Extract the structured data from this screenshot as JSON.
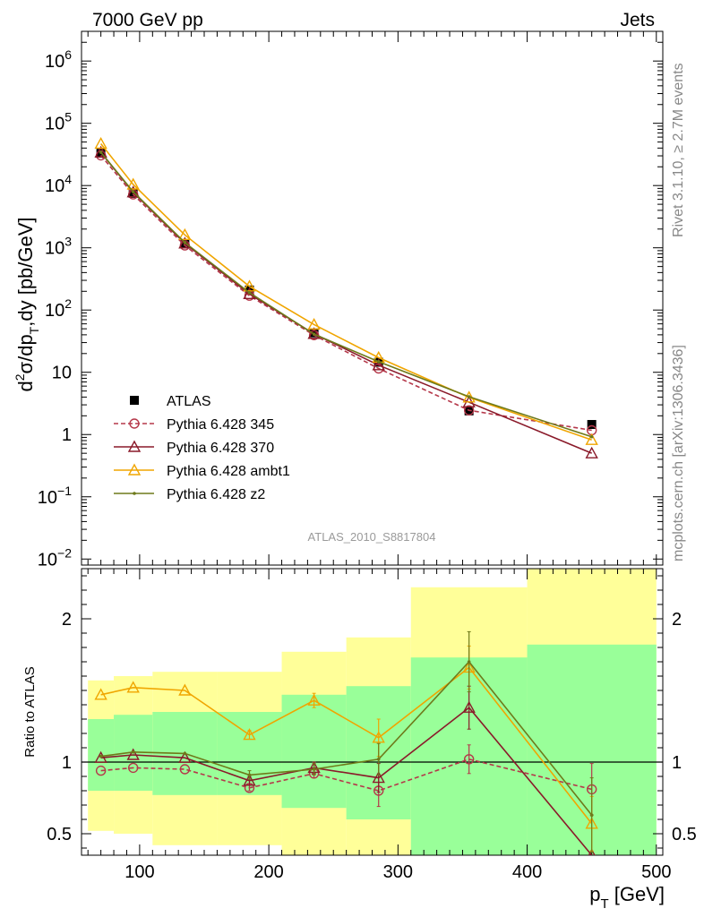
{
  "header": {
    "left": "7000 GeV pp",
    "right": "Jets"
  },
  "side_labels": {
    "rivet": "Rivet 3.1.10, ≥ 2.7M events",
    "mcplots": "mcplots.cern.ch [arXiv:1306.3436]"
  },
  "watermark": "ATLAS_2010_S8817804",
  "chart_data": [
    {
      "type": "line",
      "panel": "main",
      "ylabel_parts": {
        "d": "d",
        "sup2": "2",
        "mid1": "σ/dp",
        "subT": "T",
        "mid2": ",dy [pb/GeV]"
      },
      "yscale": "log",
      "xlim": [
        55,
        505
      ],
      "ylim": [
        0.008,
        3000000
      ],
      "ytick_labels": [
        {
          "base": "10",
          "exp": "6",
          "v": 1000000
        },
        {
          "base": "10",
          "exp": "5",
          "v": 100000
        },
        {
          "base": "10",
          "exp": "4",
          "v": 10000
        },
        {
          "base": "10",
          "exp": "3",
          "v": 1000
        },
        {
          "base": "10",
          "exp": "2",
          "v": 100
        },
        {
          "base": "10",
          "exp": "",
          "v": 10
        },
        {
          "base": "1",
          "exp": "",
          "v": 1
        },
        {
          "base": "10",
          "exp": "−1",
          "v": 0.1
        },
        {
          "base": "10",
          "exp": "−2",
          "v": 0.01
        }
      ],
      "x": [
        70,
        95,
        135,
        185,
        235,
        285,
        355,
        450
      ],
      "series": [
        {
          "name": "ATLAS",
          "color": "#000000",
          "marker": "square",
          "values": [
            33000,
            7500,
            1150,
            210,
            43,
            14.5,
            2.4,
            1.45
          ]
        },
        {
          "name": "Pythia 6.428 345",
          "color": "#b5384a",
          "marker": "circle",
          "dashed": true,
          "values": [
            30500,
            7200,
            1090,
            170,
            39.5,
            11.5,
            2.45,
            1.17
          ]
        },
        {
          "name": "Pythia 6.428 370",
          "color": "#8a1a2a",
          "marker": "triangle",
          "values": [
            34000,
            7800,
            1175,
            181,
            41.5,
            13,
            3.3,
            0.5
          ]
        },
        {
          "name": "Pythia 6.428 ambt1",
          "color": "#f0a500",
          "marker": "triangle",
          "values": [
            47000,
            10400,
            1610,
            240,
            58.5,
            17.2,
            3.95,
            0.82
          ]
        },
        {
          "name": "Pythia 6.428 z2",
          "color": "#6e7a1a",
          "marker": "dot",
          "values": [
            34200,
            7950,
            1215,
            190,
            41,
            14.8,
            4.05,
            0.92
          ]
        }
      ]
    },
    {
      "type": "line",
      "panel": "ratio",
      "ylabel": "Ratio to ATLAS",
      "xlabel_main": "p",
      "xlabel_sub": "T",
      "xlabel_unit": " [GeV]",
      "ylim": [
        0.35,
        2.35
      ],
      "ytick_labels": [
        "2",
        "1",
        "0.5"
      ],
      "ytick_values": [
        2,
        1,
        0.5
      ],
      "xtick_labels": [
        "100",
        "200",
        "300",
        "400",
        "500"
      ],
      "xtick_values": [
        100,
        200,
        300,
        400,
        500
      ],
      "reference_line": 1,
      "band_bins": [
        {
          "x0": 60,
          "x1": 80,
          "green": [
            0.8,
            1.3
          ],
          "yellow": [
            0.52,
            1.57
          ]
        },
        {
          "x0": 80,
          "x1": 110,
          "green": [
            0.8,
            1.33
          ],
          "yellow": [
            0.5,
            1.6
          ]
        },
        {
          "x0": 110,
          "x1": 160,
          "green": [
            0.77,
            1.35
          ],
          "yellow": [
            0.42,
            1.63
          ]
        },
        {
          "x0": 160,
          "x1": 210,
          "green": [
            0.77,
            1.35
          ],
          "yellow": [
            0.42,
            1.63
          ]
        },
        {
          "x0": 210,
          "x1": 260,
          "green": [
            0.68,
            1.47
          ],
          "yellow": [
            0.35,
            1.77
          ]
        },
        {
          "x0": 260,
          "x1": 310,
          "green": [
            0.6,
            1.53
          ],
          "yellow": [
            0.35,
            1.87
          ]
        },
        {
          "x0": 310,
          "x1": 400,
          "green": [
            0.35,
            1.73
          ],
          "yellow": [
            0.35,
            2.22
          ]
        },
        {
          "x0": 400,
          "x1": 500,
          "green": [
            0.35,
            1.82
          ],
          "yellow": [
            0.35,
            2.35
          ]
        }
      ],
      "x": [
        70,
        95,
        135,
        185,
        235,
        285,
        355,
        450
      ],
      "series": [
        {
          "name": "Pythia 6.428 345",
          "color": "#b5384a",
          "marker": "circle",
          "dashed": true,
          "values": [
            0.94,
            0.96,
            0.95,
            0.82,
            0.92,
            0.8,
            1.02,
            0.81
          ],
          "errors": [
            0,
            0,
            0,
            0.02,
            0.03,
            0.11,
            0.1,
            0.18
          ]
        },
        {
          "name": "Pythia 6.428 370",
          "color": "#8a1a2a",
          "marker": "triangle",
          "values": [
            1.03,
            1.05,
            1.03,
            0.87,
            0.96,
            0.89,
            1.38,
            0.35
          ],
          "errors": [
            0,
            0,
            0,
            0.03,
            0.04,
            0.1,
            0.15,
            0
          ]
        },
        {
          "name": "Pythia 6.428 ambt1",
          "color": "#f0a500",
          "marker": "triangle",
          "values": [
            1.47,
            1.52,
            1.5,
            1.19,
            1.43,
            1.17,
            1.66,
            0.57
          ],
          "errors": [
            0,
            0,
            0,
            0.03,
            0.05,
            0.13,
            0.15,
            0.19
          ]
        },
        {
          "name": "Pythia 6.428 z2",
          "color": "#6e7a1a",
          "marker": "dot",
          "values": [
            1.04,
            1.07,
            1.06,
            0.91,
            0.95,
            1.02,
            1.7,
            0.63
          ],
          "errors": [
            0,
            0,
            0,
            0.03,
            0.04,
            0.11,
            0.21,
            0.26
          ]
        }
      ]
    }
  ]
}
